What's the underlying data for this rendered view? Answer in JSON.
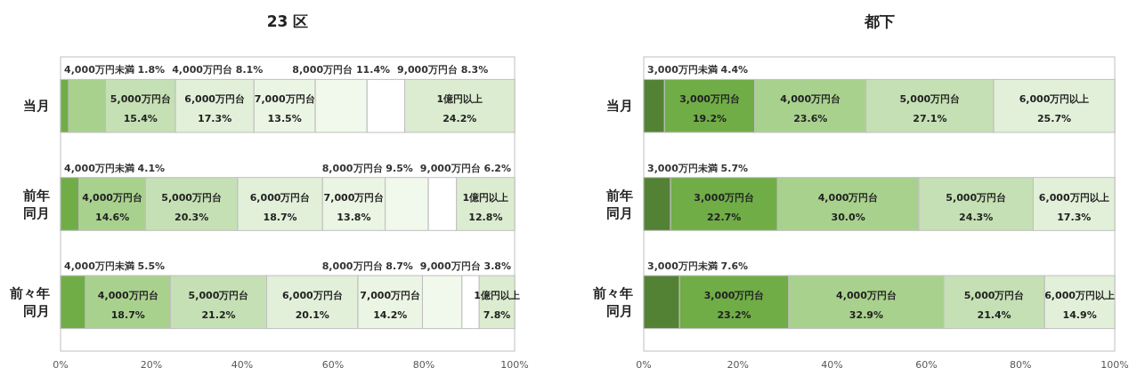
{
  "chart_data": [
    {
      "type": "bar",
      "orientation": "horizontal",
      "stacked": true,
      "title": "23 区",
      "categories": [
        "当月",
        "前年同月",
        "前々年同月"
      ],
      "xlim": [
        0,
        100
      ],
      "xticks": [
        {
          "value": 0,
          "label": "0%"
        },
        {
          "value": 20,
          "label": "20%"
        },
        {
          "value": 40,
          "label": "40%"
        },
        {
          "value": 60,
          "label": "60%"
        },
        {
          "value": 80,
          "label": "80%"
        },
        {
          "value": 100,
          "label": "100%"
        }
      ],
      "grid": false,
      "legend": false,
      "series": [
        {
          "name": "4,000万円未満",
          "color": "#70ad47",
          "values": [
            1.8,
            4.1,
            5.5
          ],
          "value_labels": [
            "1.8%",
            "4.1%",
            "5.5%"
          ]
        },
        {
          "name": "4,000万円台",
          "color": "#a9d18e",
          "values": [
            8.1,
            14.6,
            18.7
          ],
          "value_labels": [
            "8.1%",
            "14.6%",
            "18.7%"
          ]
        },
        {
          "name": "5,000万円台",
          "color": "#c5e0b4",
          "values": [
            15.4,
            20.3,
            21.2
          ],
          "value_labels": [
            "15.4%",
            "20.3%",
            "21.2%"
          ]
        },
        {
          "name": "6,000万円台",
          "color": "#e2f0d9",
          "values": [
            17.3,
            18.7,
            20.1
          ],
          "value_labels": [
            "17.3%",
            "18.7%",
            "20.1%"
          ]
        },
        {
          "name": "7,000万円台",
          "color": "#ebf5e4",
          "values": [
            13.5,
            13.8,
            14.2
          ],
          "value_labels": [
            "13.5%",
            "13.8%",
            "14.2%"
          ]
        },
        {
          "name": "8,000万円台",
          "color": "#f1f8ec",
          "values": [
            11.4,
            9.5,
            8.7
          ],
          "value_labels": [
            "11.4%",
            "9.5%",
            "8.7%"
          ]
        },
        {
          "name": "9,000万円台",
          "color": "#ffffff",
          "values": [
            8.3,
            6.2,
            3.8
          ],
          "value_labels": [
            "8.3%",
            "6.2%",
            "3.8%"
          ]
        },
        {
          "name": "1億円以上",
          "color": "#dcecd0",
          "values": [
            24.2,
            12.8,
            7.8
          ],
          "value_labels": [
            "24.2%",
            "12.8%",
            "7.8%"
          ]
        }
      ]
    },
    {
      "type": "bar",
      "orientation": "horizontal",
      "stacked": true,
      "title": "都下",
      "categories": [
        "当月",
        "前年同月",
        "前々年同月"
      ],
      "xlim": [
        0,
        100
      ],
      "xticks": [
        {
          "value": 0,
          "label": "0%"
        },
        {
          "value": 20,
          "label": "20%"
        },
        {
          "value": 40,
          "label": "40%"
        },
        {
          "value": 60,
          "label": "60%"
        },
        {
          "value": 80,
          "label": "80%"
        },
        {
          "value": 100,
          "label": "100%"
        }
      ],
      "grid": false,
      "legend": false,
      "series": [
        {
          "name": "3,000万円未満",
          "color": "#548235",
          "values": [
            4.4,
            5.7,
            7.6
          ],
          "value_labels": [
            "4.4%",
            "5.7%",
            "7.6%"
          ]
        },
        {
          "name": "3,000万円台",
          "color": "#70ad47",
          "values": [
            19.2,
            22.7,
            23.2
          ],
          "value_labels": [
            "19.2%",
            "22.7%",
            "23.2%"
          ]
        },
        {
          "name": "4,000万円台",
          "color": "#a9d18e",
          "values": [
            23.6,
            30.0,
            32.9
          ],
          "value_labels": [
            "23.6%",
            "30.0%",
            "32.9%"
          ]
        },
        {
          "name": "5,000万円台",
          "color": "#c5e0b4",
          "values": [
            27.1,
            24.3,
            21.4
          ],
          "value_labels": [
            "27.1%",
            "24.3%",
            "21.4%"
          ]
        },
        {
          "name": "6,000万円以上",
          "color": "#e2f0d9",
          "values": [
            25.7,
            17.3,
            14.9
          ],
          "value_labels": [
            "25.7%",
            "17.3%",
            "14.9%"
          ]
        }
      ]
    }
  ]
}
